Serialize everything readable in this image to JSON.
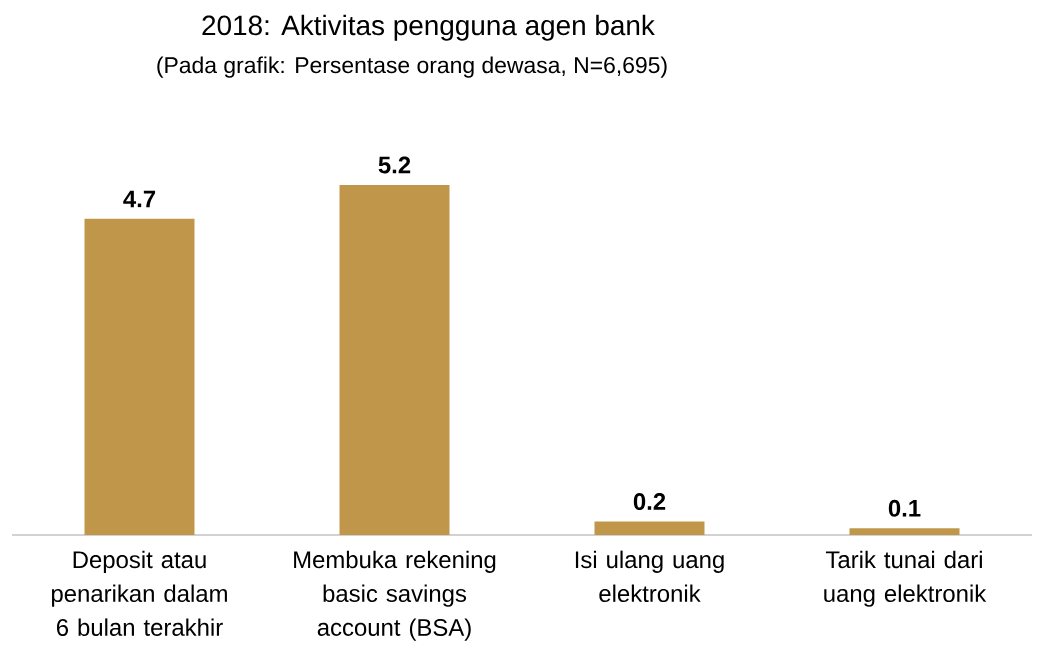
{
  "chart_data": {
    "type": "bar",
    "title": "2018: Aktivitas pengguna agen bank",
    "subtitle": "(Pada grafik: Persentase orang dewasa, N=6,695)",
    "categories": [
      "Deposit atau penarikan dalam 6 bulan terakhir",
      "Membuka rekening basic savings account (BSA)",
      "Isi ulang uang elektronik",
      "Tarik tunai dari uang elektronik"
    ],
    "values": [
      4.7,
      5.2,
      0.2,
      0.1
    ],
    "color": "#c0974a",
    "data_labels": true
  }
}
